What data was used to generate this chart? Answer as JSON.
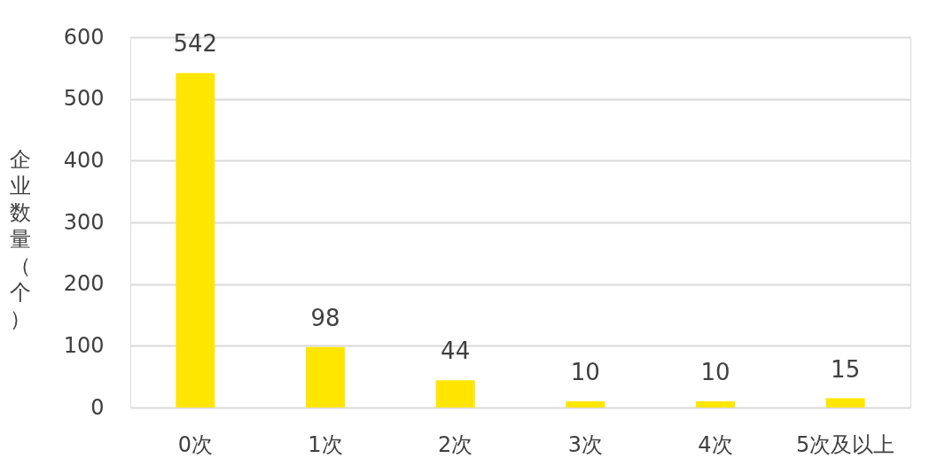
{
  "chart_data": {
    "type": "bar",
    "ylabel": "企业数量（个）",
    "categories": [
      "0次",
      "1次",
      "2次",
      "3次",
      "4次",
      "5次及以上"
    ],
    "values": [
      542,
      98,
      44,
      10,
      10,
      15
    ],
    "color": "#ffe600",
    "ylim": [
      0,
      600
    ],
    "yticks": [
      0,
      100,
      200,
      300,
      400,
      500,
      600
    ],
    "grid": "y",
    "data_labels": true
  }
}
